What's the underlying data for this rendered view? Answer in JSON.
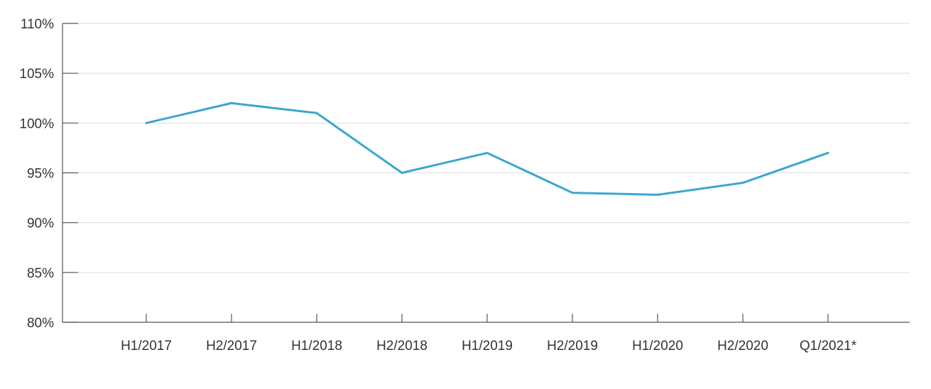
{
  "chart_data": {
    "type": "line",
    "title": "",
    "xlabel": "",
    "ylabel": "",
    "categories": [
      "H1/2017",
      "H2/2017",
      "H1/2018",
      "H2/2018",
      "H1/2019",
      "H2/2019",
      "H1/2020",
      "H2/2020",
      "Q1/2021*"
    ],
    "series": [
      {
        "values": [
          100,
          102,
          101,
          95,
          97,
          93,
          92.8,
          94,
          97
        ],
        "color": "#3aa6cf"
      }
    ],
    "ylim": [
      80,
      110
    ],
    "y_ticks": [
      80,
      85,
      90,
      95,
      100,
      105,
      110
    ],
    "y_tick_labels": [
      "80%",
      "85%",
      "90%",
      "95%",
      "100%",
      "105%",
      "110%"
    ],
    "grid": true
  }
}
